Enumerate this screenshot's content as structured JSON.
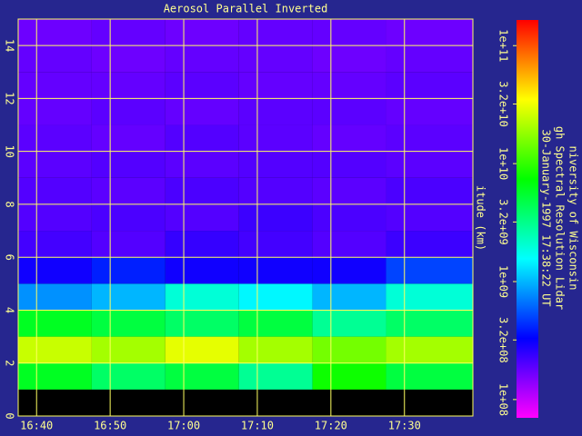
{
  "chart_data": {
    "type": "heatmap",
    "title": "Aerosol Parallel Inverted",
    "ylabel": "itude (km)",
    "side_texts": [
      "niversity of Wisconsin",
      "gh Spectral Resolution Lidar",
      "30-January-1997 17:38:22 UT"
    ],
    "xlim": [
      997.5,
      1059.3
    ],
    "xticks": [
      {
        "value": 1000,
        "label": "16:40"
      },
      {
        "value": 1010,
        "label": "16:50"
      },
      {
        "value": 1020,
        "label": "17:00"
      },
      {
        "value": 1030,
        "label": "17:10"
      },
      {
        "value": 1040,
        "label": "17:20"
      },
      {
        "value": 1050,
        "label": "17:30"
      }
    ],
    "ylim": [
      0,
      15
    ],
    "yticks": [
      0,
      2,
      4,
      6,
      8,
      10,
      12,
      14
    ],
    "grid": true,
    "xbins": [
      997.5,
      1007.5,
      1017.5,
      1027.5,
      1037.5,
      1047.5,
      1059.3
    ],
    "ybins": [
      0,
      1,
      2,
      3,
      4,
      5,
      6,
      7,
      8,
      9,
      10,
      11,
      12,
      13,
      14,
      15
    ],
    "z": [
      [
        null,
        null,
        null,
        null,
        null,
        null
      ],
      [
        6000000000.0,
        4000000000.0,
        5000000000.0,
        3000000000.0,
        8000000000.0,
        5000000000.0
      ],
      [
        25000000000.0,
        20000000000.0,
        30000000000.0,
        20000000000.0,
        15000000000.0,
        20000000000.0
      ],
      [
        6000000000.0,
        5000000000.0,
        4000000000.0,
        5000000000.0,
        3000000000.0,
        4000000000.0
      ],
      [
        800000000.0,
        1000000000.0,
        2000000000.0,
        1500000000.0,
        1000000000.0,
        2000000000.0
      ],
      [
        300000000.0,
        400000000.0,
        300000000.0,
        300000000.0,
        300000000.0,
        500000000.0
      ],
      [
        220000000.0,
        200000000.0,
        240000000.0,
        220000000.0,
        200000000.0,
        230000000.0
      ],
      [
        200000000.0,
        210000000.0,
        200000000.0,
        230000000.0,
        210000000.0,
        200000000.0
      ],
      [
        200000000.0,
        190000000.0,
        210000000.0,
        200000000.0,
        190000000.0,
        210000000.0
      ],
      [
        190000000.0,
        200000000.0,
        190000000.0,
        200000000.0,
        200000000.0,
        190000000.0
      ],
      [
        190000000.0,
        180000000.0,
        200000000.0,
        190000000.0,
        180000000.0,
        190000000.0
      ],
      [
        180000000.0,
        190000000.0,
        180000000.0,
        190000000.0,
        190000000.0,
        180000000.0
      ],
      [
        180000000.0,
        180000000.0,
        190000000.0,
        180000000.0,
        180000000.0,
        190000000.0
      ],
      [
        180000000.0,
        170000000.0,
        180000000.0,
        180000000.0,
        170000000.0,
        180000000.0
      ],
      [
        170000000.0,
        180000000.0,
        170000000.0,
        180000000.0,
        180000000.0,
        170000000.0
      ]
    ],
    "colorbar": {
      "log": true,
      "lim": [
        70000000.0,
        165000000000.0
      ],
      "ticks": [
        {
          "value": 100000000000.0,
          "label": "1e+11"
        },
        {
          "value": 32000000000.0,
          "label": "3.2e+10"
        },
        {
          "value": 10000000000.0,
          "label": "1e+10"
        },
        {
          "value": 3200000000.0,
          "label": "3.2e+09"
        },
        {
          "value": 1000000000.0,
          "label": "1e+09"
        },
        {
          "value": 320000000.0,
          "label": "3.2e+08"
        },
        {
          "value": 100000000.0,
          "label": "1e+08"
        }
      ]
    }
  }
}
